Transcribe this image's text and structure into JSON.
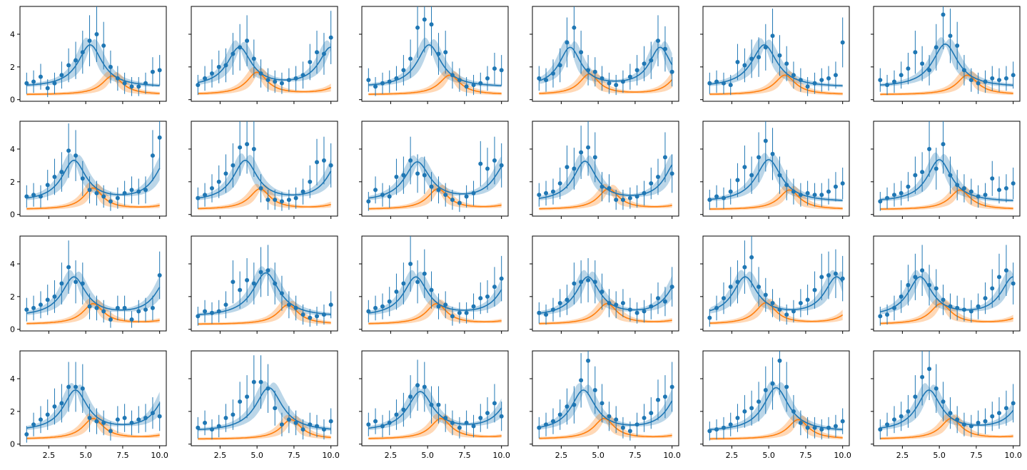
{
  "chart_data": {
    "type": "scatter",
    "layout": {
      "rows": 4,
      "cols": 6,
      "sharex": true,
      "sharey": true
    },
    "xlim": [
      0.55,
      10.45
    ],
    "ylim": [
      -0.1,
      5.7
    ],
    "xticks": [
      2.5,
      5.0,
      7.5,
      10.0
    ],
    "xtick_labels": [
      "2.5",
      "5.0",
      "7.5",
      "10.0"
    ],
    "yticks": [
      0,
      2,
      4
    ],
    "ytick_labels": [
      "0",
      "2",
      "4"
    ],
    "colors": {
      "observed": "#1f77b4",
      "component": "#ff7f0e"
    },
    "x": [
      1.0,
      1.47,
      1.95,
      2.42,
      2.89,
      3.37,
      3.84,
      4.32,
      4.79,
      5.26,
      5.74,
      6.21,
      6.68,
      7.16,
      7.63,
      8.11,
      8.58,
      9.05,
      9.53,
      10.0
    ],
    "panels": [
      {
        "y": [
          1.0,
          1.1,
          1.4,
          0.7,
          1.0,
          1.5,
          2.1,
          2.4,
          2.9,
          3.6,
          4.0,
          3.3,
          2.0,
          1.3,
          1.0,
          0.8,
          0.8,
          1.0,
          1.7,
          1.8
        ],
        "blue_peaks": [
          [
            5.3,
            2.6,
            1.0
          ]
        ],
        "orange_peaks": [
          [
            6.8,
            1.15,
            0.85
          ]
        ]
      },
      {
        "y": [
          0.9,
          1.3,
          1.6,
          2.0,
          2.1,
          2.8,
          3.2,
          3.6,
          2.5,
          1.6,
          1.2,
          1.1,
          1.0,
          1.2,
          1.3,
          1.5,
          2.3,
          2.9,
          2.8,
          3.8
        ],
        "blue_peaks": [
          [
            3.8,
            2.4,
            1.0
          ],
          [
            10.0,
            2.4,
            1.0
          ]
        ],
        "orange_peaks": [
          [
            5.0,
            1.35,
            0.85
          ],
          [
            11.3,
            1.35,
            0.85
          ]
        ]
      },
      {
        "y": [
          1.2,
          0.8,
          1.0,
          1.1,
          1.3,
          1.8,
          2.5,
          4.4,
          4.9,
          4.6,
          2.8,
          2.9,
          1.5,
          1.2,
          0.8,
          0.9,
          1.0,
          1.3,
          1.9,
          1.8
        ],
        "blue_peaks": [
          [
            5.1,
            2.6,
            1.0
          ]
        ],
        "orange_peaks": [
          [
            6.5,
            1.2,
            0.85
          ]
        ]
      },
      {
        "y": [
          1.3,
          1.2,
          1.6,
          2.1,
          3.5,
          4.4,
          2.9,
          1.8,
          1.7,
          1.3,
          1.0,
          0.9,
          1.1,
          1.4,
          1.8,
          2.2,
          2.4,
          3.6,
          3.1,
          1.7
        ],
        "blue_peaks": [
          [
            3.1,
            2.4,
            0.9
          ],
          [
            9.2,
            2.4,
            0.9
          ]
        ],
        "orange_peaks": [
          [
            4.4,
            1.25,
            0.8
          ],
          [
            10.5,
            1.25,
            0.8
          ]
        ]
      },
      {
        "y": [
          1.0,
          1.1,
          1.0,
          0.9,
          2.3,
          2.1,
          2.5,
          2.6,
          3.2,
          3.9,
          2.7,
          2.2,
          1.5,
          1.2,
          0.8,
          1.0,
          1.2,
          1.3,
          1.5,
          3.5
        ],
        "blue_peaks": [
          [
            4.7,
            2.6,
            1.05
          ]
        ],
        "orange_peaks": [
          [
            6.1,
            1.2,
            0.85
          ]
        ]
      },
      {
        "y": [
          1.2,
          0.9,
          1.1,
          1.5,
          1.9,
          2.9,
          2.2,
          1.8,
          3.2,
          5.2,
          3.9,
          3.3,
          1.8,
          1.2,
          1.0,
          1.1,
          1.3,
          1.2,
          1.3,
          1.5
        ],
        "blue_peaks": [
          [
            5.4,
            2.65,
            1.05
          ]
        ],
        "orange_peaks": [
          [
            6.9,
            1.2,
            0.85
          ]
        ]
      },
      {
        "y": [
          1.1,
          1.2,
          1.1,
          1.8,
          2.3,
          2.6,
          3.9,
          3.6,
          2.2,
          1.5,
          1.3,
          1.1,
          0.8,
          1.0,
          1.3,
          1.5,
          1.4,
          1.5,
          3.6,
          4.7
        ],
        "blue_peaks": [
          [
            4.2,
            2.5,
            1.0
          ],
          [
            10.5,
            2.5,
            1.0
          ]
        ],
        "orange_peaks": [
          [
            5.5,
            1.3,
            0.8
          ],
          [
            11.8,
            1.3,
            0.8
          ]
        ]
      },
      {
        "y": [
          1.0,
          1.2,
          1.6,
          2.0,
          2.5,
          3.0,
          4.1,
          4.3,
          4.0,
          1.6,
          0.9,
          0.9,
          0.8,
          0.9,
          1.0,
          1.4,
          2.0,
          3.2,
          3.3,
          3.0
        ],
        "blue_peaks": [
          [
            4.2,
            2.5,
            1.0
          ],
          [
            10.6,
            2.5,
            1.0
          ]
        ],
        "orange_peaks": [
          [
            5.2,
            1.25,
            0.85
          ],
          [
            11.6,
            1.25,
            0.85
          ]
        ]
      },
      {
        "y": [
          0.8,
          1.5,
          1.2,
          1.1,
          2.3,
          2.4,
          3.3,
          2.5,
          2.4,
          1.7,
          1.5,
          1.2,
          0.9,
          0.7,
          1.1,
          1.3,
          3.1,
          2.8,
          3.3,
          3.0
        ],
        "blue_peaks": [
          [
            4.3,
            2.4,
            1.05
          ],
          [
            10.4,
            2.4,
            1.05
          ]
        ],
        "orange_peaks": [
          [
            5.7,
            1.25,
            0.85
          ],
          [
            11.8,
            1.25,
            0.85
          ]
        ]
      },
      {
        "y": [
          1.2,
          1.3,
          1.4,
          1.9,
          2.9,
          2.8,
          3.8,
          4.1,
          3.5,
          1.7,
          1.6,
          0.9,
          0.9,
          1.0,
          1.1,
          1.3,
          1.9,
          2.3,
          3.5,
          2.5
        ],
        "blue_peaks": [
          [
            4.1,
            2.45,
            0.95
          ],
          [
            10.3,
            2.45,
            0.95
          ]
        ],
        "orange_peaks": [
          [
            5.7,
            1.25,
            0.85
          ],
          [
            11.9,
            1.25,
            0.85
          ]
        ]
      },
      {
        "y": [
          0.9,
          1.1,
          1.0,
          1.4,
          2.1,
          2.9,
          2.4,
          3.5,
          4.5,
          3.7,
          2.4,
          1.8,
          1.4,
          1.2,
          1.3,
          1.2,
          1.2,
          1.4,
          1.7,
          1.9
        ],
        "blue_peaks": [
          [
            5.0,
            2.6,
            1.05
          ]
        ],
        "orange_peaks": [
          [
            6.4,
            1.2,
            0.85
          ]
        ]
      },
      {
        "y": [
          0.8,
          1.0,
          1.2,
          1.3,
          1.7,
          2.4,
          2.6,
          4.0,
          2.8,
          4.3,
          2.4,
          1.8,
          1.6,
          1.4,
          1.1,
          1.2,
          2.2,
          1.5,
          1.6,
          1.9
        ],
        "blue_peaks": [
          [
            5.0,
            2.6,
            1.0
          ]
        ],
        "orange_peaks": [
          [
            6.4,
            1.2,
            0.85
          ]
        ]
      },
      {
        "y": [
          1.2,
          1.3,
          1.5,
          1.8,
          2.0,
          2.8,
          3.8,
          2.9,
          2.8,
          1.4,
          1.3,
          1.1,
          0.6,
          1.3,
          1.3,
          0.6,
          1.1,
          1.2,
          1.3,
          3.3
        ],
        "blue_peaks": [
          [
            4.2,
            2.4,
            1.0
          ],
          [
            10.6,
            2.4,
            1.0
          ]
        ],
        "orange_peaks": [
          [
            5.5,
            1.25,
            0.85
          ],
          [
            11.9,
            1.25,
            0.85
          ]
        ]
      },
      {
        "y": [
          0.8,
          1.1,
          1.0,
          1.1,
          1.5,
          2.9,
          2.4,
          3.0,
          2.8,
          3.5,
          3.6,
          2.8,
          2.2,
          1.5,
          1.3,
          0.9,
          0.7,
          0.8,
          0.9,
          1.5
        ],
        "blue_peaks": [
          [
            5.6,
            2.7,
            1.1
          ]
        ],
        "orange_peaks": [
          [
            7.1,
            1.2,
            0.85
          ]
        ]
      },
      {
        "y": [
          1.1,
          1.3,
          1.4,
          1.7,
          2.3,
          2.8,
          4.0,
          2.9,
          3.4,
          2.4,
          1.4,
          1.5,
          0.8,
          1.0,
          1.0,
          1.4,
          1.9,
          2.0,
          2.6,
          3.1
        ],
        "blue_peaks": [
          [
            4.2,
            2.4,
            1.0
          ],
          [
            10.7,
            2.4,
            1.0
          ]
        ],
        "orange_peaks": [
          [
            5.6,
            1.25,
            0.85
          ],
          [
            12.1,
            1.25,
            0.85
          ]
        ]
      },
      {
        "y": [
          1.0,
          0.9,
          1.2,
          1.6,
          1.8,
          2.8,
          2.9,
          3.0,
          2.9,
          2.3,
          1.6,
          1.5,
          1.6,
          1.2,
          1.0,
          1.1,
          1.4,
          1.9,
          1.7,
          2.6
        ],
        "blue_peaks": [
          [
            4.3,
            2.4,
            1.0
          ],
          [
            10.6,
            2.4,
            1.0
          ]
        ],
        "orange_peaks": [
          [
            5.6,
            1.25,
            0.85
          ],
          [
            11.9,
            1.25,
            0.85
          ]
        ]
      },
      {
        "y": [
          0.7,
          1.3,
          1.9,
          2.6,
          2.9,
          3.8,
          4.4,
          2.6,
          2.1,
          1.6,
          1.2,
          0.9,
          1.1,
          1.6,
          1.8,
          2.4,
          3.2,
          3.3,
          3.4,
          3.1
        ],
        "blue_peaks": [
          [
            3.4,
            2.4,
            1.0
          ],
          [
            9.6,
            2.4,
            1.0
          ]
        ],
        "orange_peaks": [
          [
            4.8,
            1.3,
            0.85
          ],
          [
            11.0,
            1.3,
            0.85
          ]
        ]
      },
      {
        "y": [
          0.8,
          0.9,
          1.3,
          2.0,
          2.7,
          3.2,
          3.6,
          2.7,
          2.5,
          1.8,
          1.4,
          1.3,
          1.2,
          1.1,
          1.4,
          1.9,
          2.5,
          3.2,
          3.6,
          2.8
        ],
        "blue_peaks": [
          [
            3.7,
            2.4,
            1.0
          ],
          [
            10.0,
            2.4,
            1.0
          ]
        ],
        "orange_peaks": [
          [
            5.1,
            1.25,
            0.85
          ],
          [
            11.4,
            1.25,
            0.85
          ]
        ]
      },
      {
        "y": [
          0.6,
          1.2,
          1.5,
          1.8,
          2.3,
          2.5,
          3.5,
          3.5,
          3.4,
          1.6,
          1.4,
          1.3,
          0.8,
          1.5,
          1.6,
          1.3,
          1.5,
          1.6,
          1.9,
          1.7
        ],
        "blue_peaks": [
          [
            4.3,
            2.5,
            1.0
          ],
          [
            10.7,
            2.5,
            1.0
          ]
        ],
        "orange_peaks": [
          [
            5.5,
            1.25,
            0.85
          ],
          [
            11.9,
            1.25,
            0.85
          ]
        ]
      },
      {
        "y": [
          1.0,
          1.3,
          0.9,
          1.1,
          1.6,
          1.8,
          2.6,
          2.9,
          3.8,
          3.8,
          3.4,
          2.2,
          1.2,
          1.5,
          1.3,
          0.9,
          1.2,
          1.1,
          0.9,
          1.4
        ],
        "blue_peaks": [
          [
            5.8,
            2.7,
            1.1
          ]
        ],
        "orange_peaks": [
          [
            7.3,
            1.2,
            0.85
          ]
        ]
      },
      {
        "y": [
          1.2,
          1.4,
          1.1,
          1.3,
          1.8,
          2.1,
          2.9,
          3.6,
          3.5,
          2.4,
          2.4,
          1.6,
          1.3,
          1.0,
          1.3,
          1.1,
          1.6,
          1.9,
          2.5,
          1.7
        ],
        "blue_peaks": [
          [
            4.5,
            2.4,
            1.05
          ],
          [
            10.9,
            2.4,
            1.05
          ]
        ],
        "orange_peaks": [
          [
            5.9,
            1.25,
            0.85
          ],
          [
            12.3,
            1.25,
            0.85
          ]
        ]
      },
      {
        "y": [
          1.0,
          1.2,
          1.4,
          1.8,
          2.3,
          2.4,
          3.9,
          5.1,
          3.3,
          2.5,
          1.7,
          1.5,
          1.0,
          0.8,
          1.2,
          1.6,
          1.9,
          2.7,
          2.9,
          3.5
        ],
        "blue_peaks": [
          [
            4.0,
            2.5,
            1.0
          ],
          [
            10.6,
            2.5,
            1.0
          ]
        ],
        "orange_peaks": [
          [
            5.4,
            1.25,
            0.85
          ],
          [
            12.0,
            1.25,
            0.85
          ]
        ]
      },
      {
        "y": [
          0.8,
          0.9,
          1.0,
          1.2,
          1.6,
          2.0,
          2.2,
          2.6,
          3.3,
          3.7,
          5.1,
          3.5,
          2.0,
          1.3,
          1.0,
          1.0,
          0.9,
          1.0,
          1.1,
          1.4
        ],
        "blue_peaks": [
          [
            5.5,
            2.7,
            1.05
          ]
        ],
        "orange_peaks": [
          [
            7.0,
            1.2,
            0.85
          ]
        ]
      },
      {
        "y": [
          0.9,
          1.2,
          1.5,
          1.7,
          2.0,
          2.9,
          4.1,
          4.6,
          3.4,
          2.6,
          1.9,
          1.5,
          1.2,
          1.1,
          1.3,
          1.4,
          1.7,
          1.9,
          2.2,
          2.5
        ],
        "blue_peaks": [
          [
            4.3,
            2.5,
            1.0
          ],
          [
            11.0,
            2.5,
            1.0
          ]
        ],
        "orange_peaks": [
          [
            5.8,
            1.25,
            0.85
          ],
          [
            12.4,
            1.25,
            0.85
          ]
        ]
      }
    ]
  }
}
